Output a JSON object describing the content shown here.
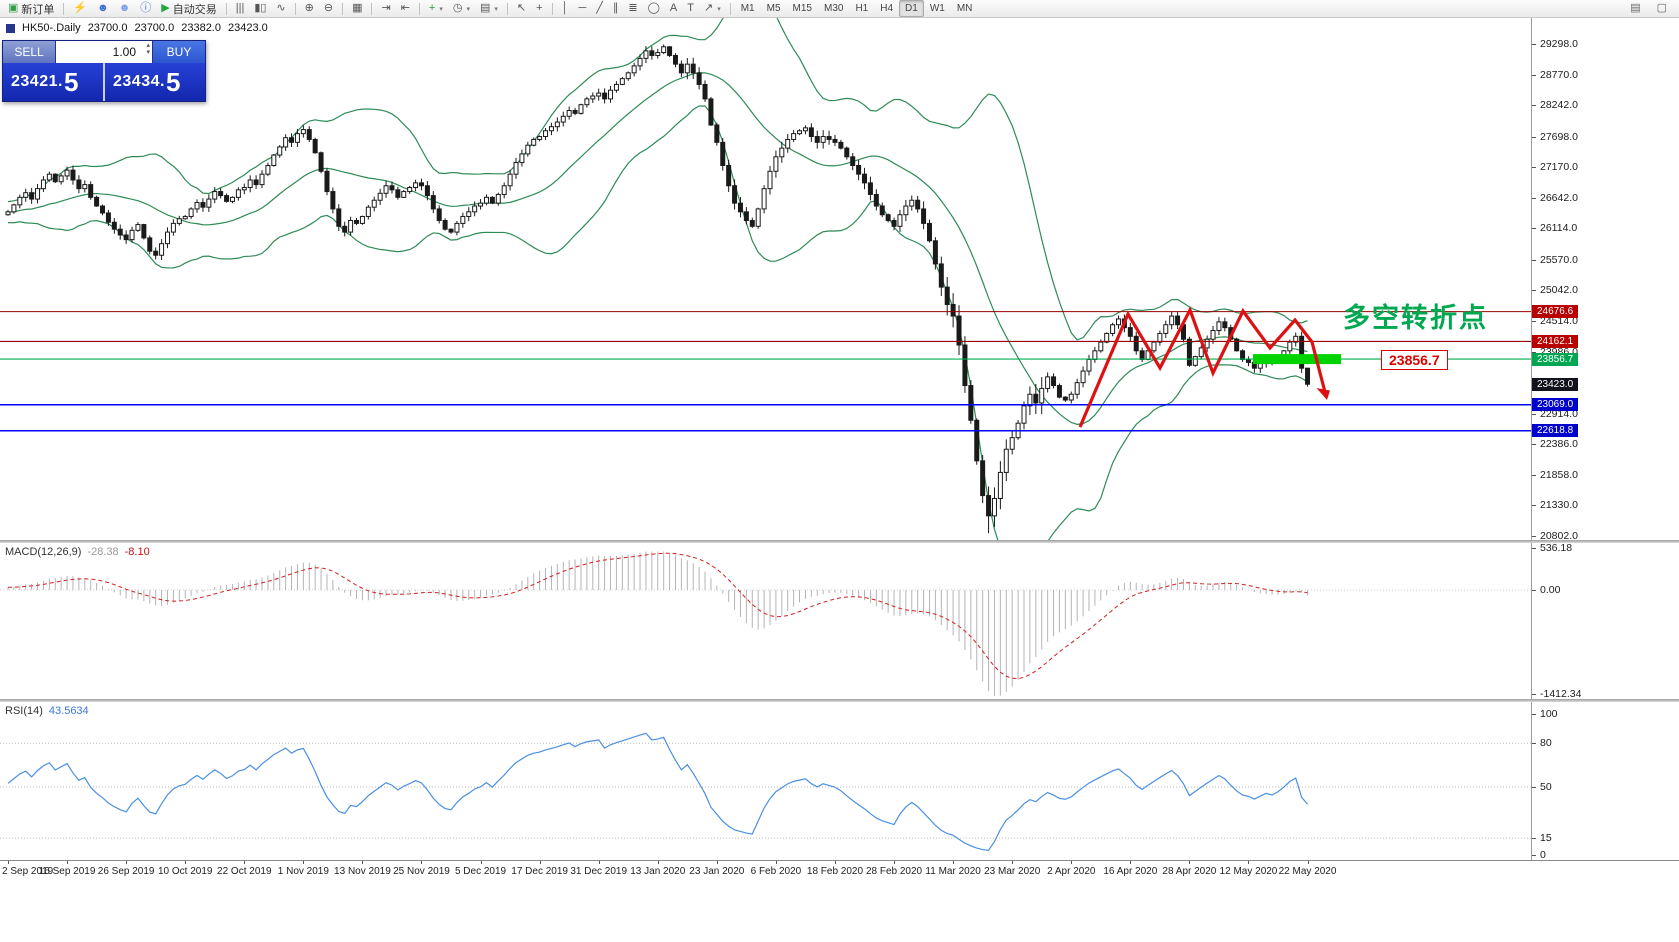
{
  "toolbar": {
    "groups": [
      {
        "items": [
          {
            "name": "new-order-button",
            "glyph": "▣",
            "color": "#2f9e44",
            "label": "新订单"
          }
        ]
      },
      {
        "items": [
          {
            "name": "experts-lightning-icon",
            "glyph": "⚡",
            "color": "#e3a008"
          },
          {
            "name": "community-user-icon",
            "glyph": "☻",
            "color": "#3b6fd4"
          },
          {
            "name": "profile-user-icon",
            "glyph": "☻",
            "color": "#7aa2e8"
          },
          {
            "name": "info-icon",
            "glyph": "ⓘ",
            "color": "#3b6fd4"
          },
          {
            "name": "auto-trading-button",
            "glyph": "▶",
            "color": "#23a83c",
            "label": "自动交易"
          }
        ]
      },
      {
        "items": [
          {
            "name": "bar-chart-icon",
            "glyph": "|||",
            "color": "#555555"
          },
          {
            "name": "candlestick-chart-icon",
            "glyph": "▮▯",
            "color": "#555555"
          },
          {
            "name": "line-chart-icon",
            "glyph": "∿",
            "color": "#555555"
          }
        ]
      },
      {
        "items": [
          {
            "name": "zoom-in-icon",
            "glyph": "⊕",
            "color": "#555555"
          },
          {
            "name": "zoom-out-icon",
            "glyph": "⊖",
            "color": "#555555"
          }
        ]
      },
      {
        "items": [
          {
            "name": "tile-windows-icon",
            "glyph": "▦",
            "color": "#555555"
          }
        ]
      },
      {
        "items": [
          {
            "name": "auto-scroll-icon",
            "glyph": "⇥",
            "color": "#555555"
          },
          {
            "name": "chart-shift-icon",
            "glyph": "⇤",
            "color": "#555555"
          }
        ]
      },
      {
        "items": [
          {
            "name": "indicators-icon",
            "glyph": "+",
            "color": "#2f9e44",
            "caret": true
          },
          {
            "name": "periods-icon",
            "glyph": "◷",
            "color": "#555555",
            "caret": true
          },
          {
            "name": "templates-icon",
            "glyph": "▤",
            "color": "#555555",
            "caret": true
          }
        ]
      },
      {
        "items": [
          {
            "name": "cursor-icon",
            "glyph": "↖",
            "color": "#555555"
          },
          {
            "name": "crosshair-icon",
            "glyph": "+",
            "color": "#555555"
          }
        ]
      },
      {
        "items": [
          {
            "name": "vertical-line-icon",
            "glyph": "│",
            "color": "#555555"
          },
          {
            "name": "horizontal-line-icon",
            "glyph": "─",
            "color": "#555555"
          },
          {
            "name": "trendline-icon",
            "glyph": "╱",
            "color": "#555555"
          },
          {
            "name": "channel-icon",
            "glyph": "∥",
            "color": "#555555"
          },
          {
            "name": "fibonacci-icon",
            "glyph": "≣",
            "color": "#555555"
          },
          {
            "name": "shapes-icon",
            "glyph": "◯",
            "color": "#555555"
          },
          {
            "name": "text-icon",
            "glyph": "A",
            "color": "#555555"
          },
          {
            "name": "text-label-icon",
            "glyph": "T",
            "color": "#555555"
          },
          {
            "name": "arrows-icon",
            "glyph": "↗",
            "color": "#555555",
            "caret": true
          }
        ]
      },
      {
        "items": [
          {
            "name": "timeframe-m1",
            "label": "M1"
          },
          {
            "name": "timeframe-m5",
            "label": "M5"
          },
          {
            "name": "timeframe-m15",
            "label": "M15"
          },
          {
            "name": "timeframe-m30",
            "label": "M30"
          },
          {
            "name": "timeframe-h1",
            "label": "H1"
          },
          {
            "name": "timeframe-h4",
            "label": "H4"
          },
          {
            "name": "timeframe-d1",
            "label": "D1",
            "active": true
          },
          {
            "name": "timeframe-w1",
            "label": "W1"
          },
          {
            "name": "timeframe-mn",
            "label": "MN"
          }
        ]
      }
    ],
    "right_items": [
      {
        "name": "dock-panel-icon",
        "glyph": "▤",
        "color": "#666666"
      },
      {
        "name": "restore-window-icon",
        "glyph": "▢",
        "color": "#666666"
      }
    ]
  },
  "chart": {
    "symbol": "HK50-.Daily",
    "open": "23700.0",
    "high": "23700.0",
    "low": "23382.0",
    "close": "23423.0"
  },
  "trade_panel": {
    "sell_label": "SELL",
    "buy_label": "BUY",
    "volume": "1.00",
    "sell_price": "23421.5",
    "buy_price": "23434.5"
  },
  "annotations": {
    "turning_point_text": "多空转折点",
    "turning_point_color": "#00a84f",
    "price_callout": "23856.7",
    "highlight_color": "#00d400",
    "zigzag_color": "#dd1111"
  },
  "price_axis": {
    "labels": [
      "29298.0",
      "28770.0",
      "28242.0",
      "27698.0",
      "27170.0",
      "26642.0",
      "26114.0",
      "25570.0",
      "25042.0",
      "24514.0",
      "23986.0",
      "22914.0",
      "22386.0",
      "21858.0",
      "21330.0",
      "20802.0"
    ]
  },
  "macd": {
    "name": "MACD(12,26,9)",
    "value_main": "-28.38",
    "value_signal": "-8.10",
    "axis": [
      {
        "label": "536.18",
        "value": 536.18
      },
      {
        "label": "0.00",
        "value": 0
      },
      {
        "label": "-1412.34",
        "value": -1412.34
      }
    ],
    "histogram_color": "#b4b4b4",
    "signal_color": "#d32020"
  },
  "rsi": {
    "name": "RSI(14)",
    "value": "43.5634",
    "axis": [
      {
        "label": "100",
        "value": 100
      },
      {
        "label": "80",
        "value": 80
      },
      {
        "label": "50",
        "value": 50
      },
      {
        "label": "15",
        "value": 15
      },
      {
        "label": "0",
        "value": 0
      }
    ],
    "levels": [
      80,
      50,
      15
    ],
    "line_color": "#4a90e2"
  },
  "chart_data": {
    "type": "candlestick",
    "symbol": "HK50",
    "period": "Daily",
    "ylim": [
      20802.0,
      29298.0
    ],
    "first_open": 26350,
    "closes": [
      26400,
      26520,
      26650,
      26730,
      26620,
      26800,
      26950,
      27050,
      26920,
      27020,
      27120,
      26950,
      26800,
      26870,
      26650,
      26500,
      26380,
      26220,
      26100,
      26000,
      25920,
      26080,
      26180,
      25950,
      25720,
      25650,
      25850,
      26050,
      26200,
      26280,
      26320,
      26450,
      26560,
      26480,
      26620,
      26750,
      26680,
      26580,
      26650,
      26780,
      26820,
      26950,
      26870,
      27050,
      27200,
      27380,
      27520,
      27680,
      27600,
      27750,
      27820,
      27650,
      27420,
      27100,
      26750,
      26450,
      26150,
      26050,
      26250,
      26200,
      26320,
      26480,
      26600,
      26720,
      26850,
      26780,
      26650,
      26750,
      26820,
      26900,
      26850,
      26680,
      26450,
      26250,
      26100,
      26050,
      26200,
      26320,
      26400,
      26500,
      26550,
      26650,
      26550,
      26700,
      26850,
      27050,
      27250,
      27400,
      27550,
      27650,
      27700,
      27800,
      27870,
      27950,
      28050,
      28150,
      28100,
      28250,
      28350,
      28400,
      28450,
      28350,
      28500,
      28600,
      28700,
      28800,
      28920,
      29050,
      29180,
      29100,
      29150,
      29250,
      29100,
      28950,
      28800,
      28950,
      28800,
      28600,
      28350,
      27900,
      27600,
      27200,
      26850,
      26550,
      26400,
      26250,
      26150,
      26450,
      26800,
      27100,
      27350,
      27500,
      27650,
      27750,
      27800,
      27850,
      27700,
      27600,
      27700,
      27650,
      27600,
      27500,
      27350,
      27200,
      27050,
      26900,
      26700,
      26500,
      26350,
      26250,
      26150,
      26350,
      26500,
      26600,
      26450,
      26200,
      25900,
      25500,
      25100,
      24800,
      24600,
      24100,
      23400,
      22800,
      22100,
      21500,
      21150,
      21450,
      21900,
      22300,
      22500,
      22750,
      23050,
      23250,
      23100,
      23350,
      23550,
      23400,
      23200,
      23150,
      23250,
      23450,
      23650,
      23850,
      24000,
      24150,
      24300,
      24450,
      24550,
      24400,
      24250,
      24000,
      23850,
      24000,
      24150,
      24300,
      24450,
      24600,
      24450,
      24200,
      23750,
      23900,
      24050,
      24200,
      24350,
      24500,
      24400,
      24200,
      24000,
      23850,
      23800,
      23700,
      23780,
      23850,
      23800,
      23880,
      24000,
      24150,
      24250,
      23700,
      23423
    ],
    "last_candle": {
      "open": 23700.0,
      "high": 23700.0,
      "low": 23382.0,
      "close": 23423.0
    },
    "x_tick_dates": [
      "2 Sep 2019",
      "16 Sep 2019",
      "26 Sep 2019",
      "10 Oct 2019",
      "22 Oct 2019",
      "1 Nov 2019",
      "13 Nov 2019",
      "25 Nov 2019",
      "5 Dec 2019",
      "17 Dec 2019",
      "31 Dec 2019",
      "13 Jan 2020",
      "23 Jan 2020",
      "6 Feb 2020",
      "18 Feb 2020",
      "28 Feb 2020",
      "11 Mar 2020",
      "23 Mar 2020",
      "2 Apr 2020",
      "16 Apr 2020",
      "28 Apr 2020",
      "12 May 2020",
      "22 May 2020"
    ],
    "bars_per_x_tick": 10,
    "overlays": {
      "bollinger_bands": {
        "period": 20,
        "deviation": 2,
        "color": "#2e8b57"
      }
    },
    "horizontal_levels": [
      {
        "value": 24676.6,
        "color": "#990000",
        "tag_bg": "#b80000",
        "kind": "resistance"
      },
      {
        "value": 24162.1,
        "color": "#990000",
        "tag_bg": "#b80000",
        "kind": "resistance"
      },
      {
        "value": 23856.7,
        "color": "#00b050",
        "tag_bg": "#00a651",
        "kind": "key-level"
      },
      {
        "value": 23069.0,
        "color": "#0000ff",
        "tag_bg": "#0000cc",
        "kind": "support"
      },
      {
        "value": 22618.8,
        "color": "#0000ff",
        "tag_bg": "#0000cc",
        "kind": "support"
      }
    ],
    "current_price": {
      "value": 23423.0,
      "tag_bg": "#11121c"
    }
  }
}
